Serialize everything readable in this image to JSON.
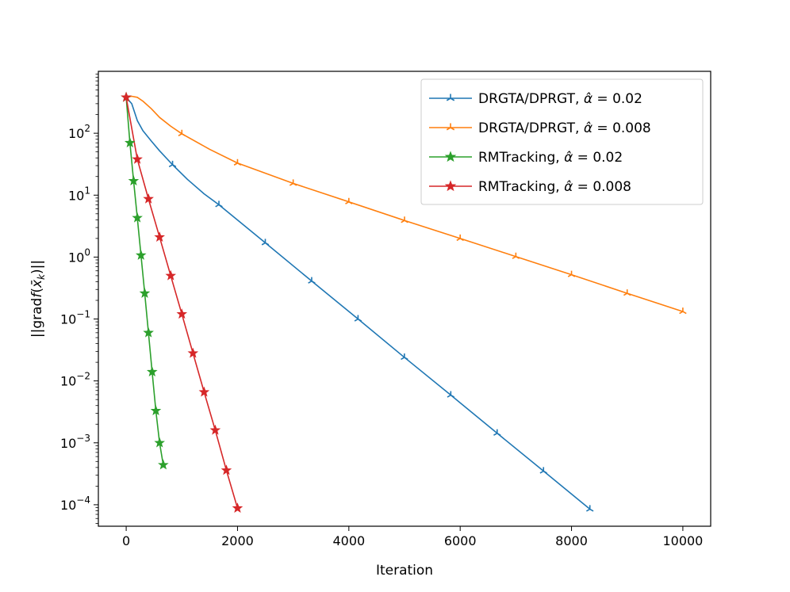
{
  "chart_data": {
    "type": "line",
    "title": "",
    "xlabel": "Iteration",
    "ylabel": "||grad f(x̄_k)||",
    "xlim": [
      -500,
      10500
    ],
    "ylim": [
      4.5e-05,
      1000
    ],
    "yscale": "log",
    "grid": false,
    "legend_position": "top-right",
    "x_ticks": [
      0,
      2000,
      4000,
      6000,
      8000,
      10000
    ],
    "x_tick_labels": [
      "0",
      "2000",
      "4000",
      "6000",
      "8000",
      "10000"
    ],
    "y_ticks": [
      0.0001,
      0.001,
      0.01,
      0.1,
      1,
      10,
      100
    ],
    "y_tick_labels": [
      {
        "base": "10",
        "exp": "−4"
      },
      {
        "base": "10",
        "exp": "−3"
      },
      {
        "base": "10",
        "exp": "−2"
      },
      {
        "base": "10",
        "exp": "−1"
      },
      {
        "base": "10",
        "exp": "0"
      },
      {
        "base": "10",
        "exp": "1"
      },
      {
        "base": "10",
        "exp": "2"
      }
    ],
    "series": [
      {
        "name": "DRGTA/DPRGT, α̂ = 0.02",
        "legend_prefix": "DRGTA/DPRGT, ",
        "legend_value": "0.02",
        "color": "#1f77b4",
        "marker": "tri",
        "x": [
          0,
          100,
          200,
          300,
          450,
          600,
          833,
          1100,
          1400,
          1666,
          2499,
          3332,
          4165,
          4998,
          5831,
          6664,
          7497,
          8330
        ],
        "y": [
          380,
          300,
          160,
          110,
          75,
          52,
          31,
          18,
          10.5,
          7.0,
          1.7,
          0.41,
          0.1,
          0.024,
          0.0059,
          0.00143,
          0.00035,
          8.5e-05
        ],
        "markers_x": [
          833,
          1666,
          2499,
          3332,
          4165,
          4998,
          5831,
          6664,
          7497,
          8330
        ]
      },
      {
        "name": "DRGTA/DPRGT, α̂ = 0.008",
        "legend_prefix": "DRGTA/DPRGT, ",
        "legend_value": "0.008",
        "color": "#ff7f0e",
        "marker": "tri",
        "x": [
          0,
          100,
          200,
          300,
          450,
          600,
          800,
          1000,
          1500,
          2000,
          3000,
          4000,
          5000,
          6000,
          7000,
          8000,
          9000,
          10000
        ],
        "y": [
          380,
          395,
          380,
          330,
          250,
          180,
          130,
          98,
          55,
          33,
          15.5,
          7.8,
          3.9,
          2.0,
          1.02,
          0.52,
          0.26,
          0.132
        ],
        "markers_x": [
          1000,
          2000,
          3000,
          4000,
          5000,
          6000,
          7000,
          8000,
          9000,
          10000
        ]
      },
      {
        "name": "RMTracking, α̂ = 0.02",
        "legend_prefix": "RMTracking, ",
        "legend_value": "0.02",
        "color": "#2ca02c",
        "marker": "star",
        "x": [
          0,
          67,
          133,
          200,
          266,
          333,
          400,
          466,
          533,
          600,
          666
        ],
        "y": [
          380,
          70,
          17,
          4.3,
          1.07,
          0.26,
          0.06,
          0.014,
          0.0033,
          0.001,
          0.00044
        ],
        "markers_x": [
          0,
          67,
          133,
          200,
          266,
          333,
          400,
          466,
          533,
          600,
          666
        ]
      },
      {
        "name": "RMTracking, α̂ = 0.008",
        "legend_prefix": "RMTracking, ",
        "legend_value": "0.008",
        "color": "#d62728",
        "marker": "star",
        "x": [
          0,
          200,
          400,
          600,
          800,
          1000,
          1200,
          1400,
          1600,
          1800,
          2000
        ],
        "y": [
          380,
          38,
          8.7,
          2.1,
          0.5,
          0.12,
          0.028,
          0.0066,
          0.0016,
          0.00036,
          8.8e-05
        ],
        "markers_x": [
          0,
          200,
          400,
          600,
          800,
          1000,
          1200,
          1400,
          1600,
          1800,
          2000
        ]
      }
    ]
  }
}
